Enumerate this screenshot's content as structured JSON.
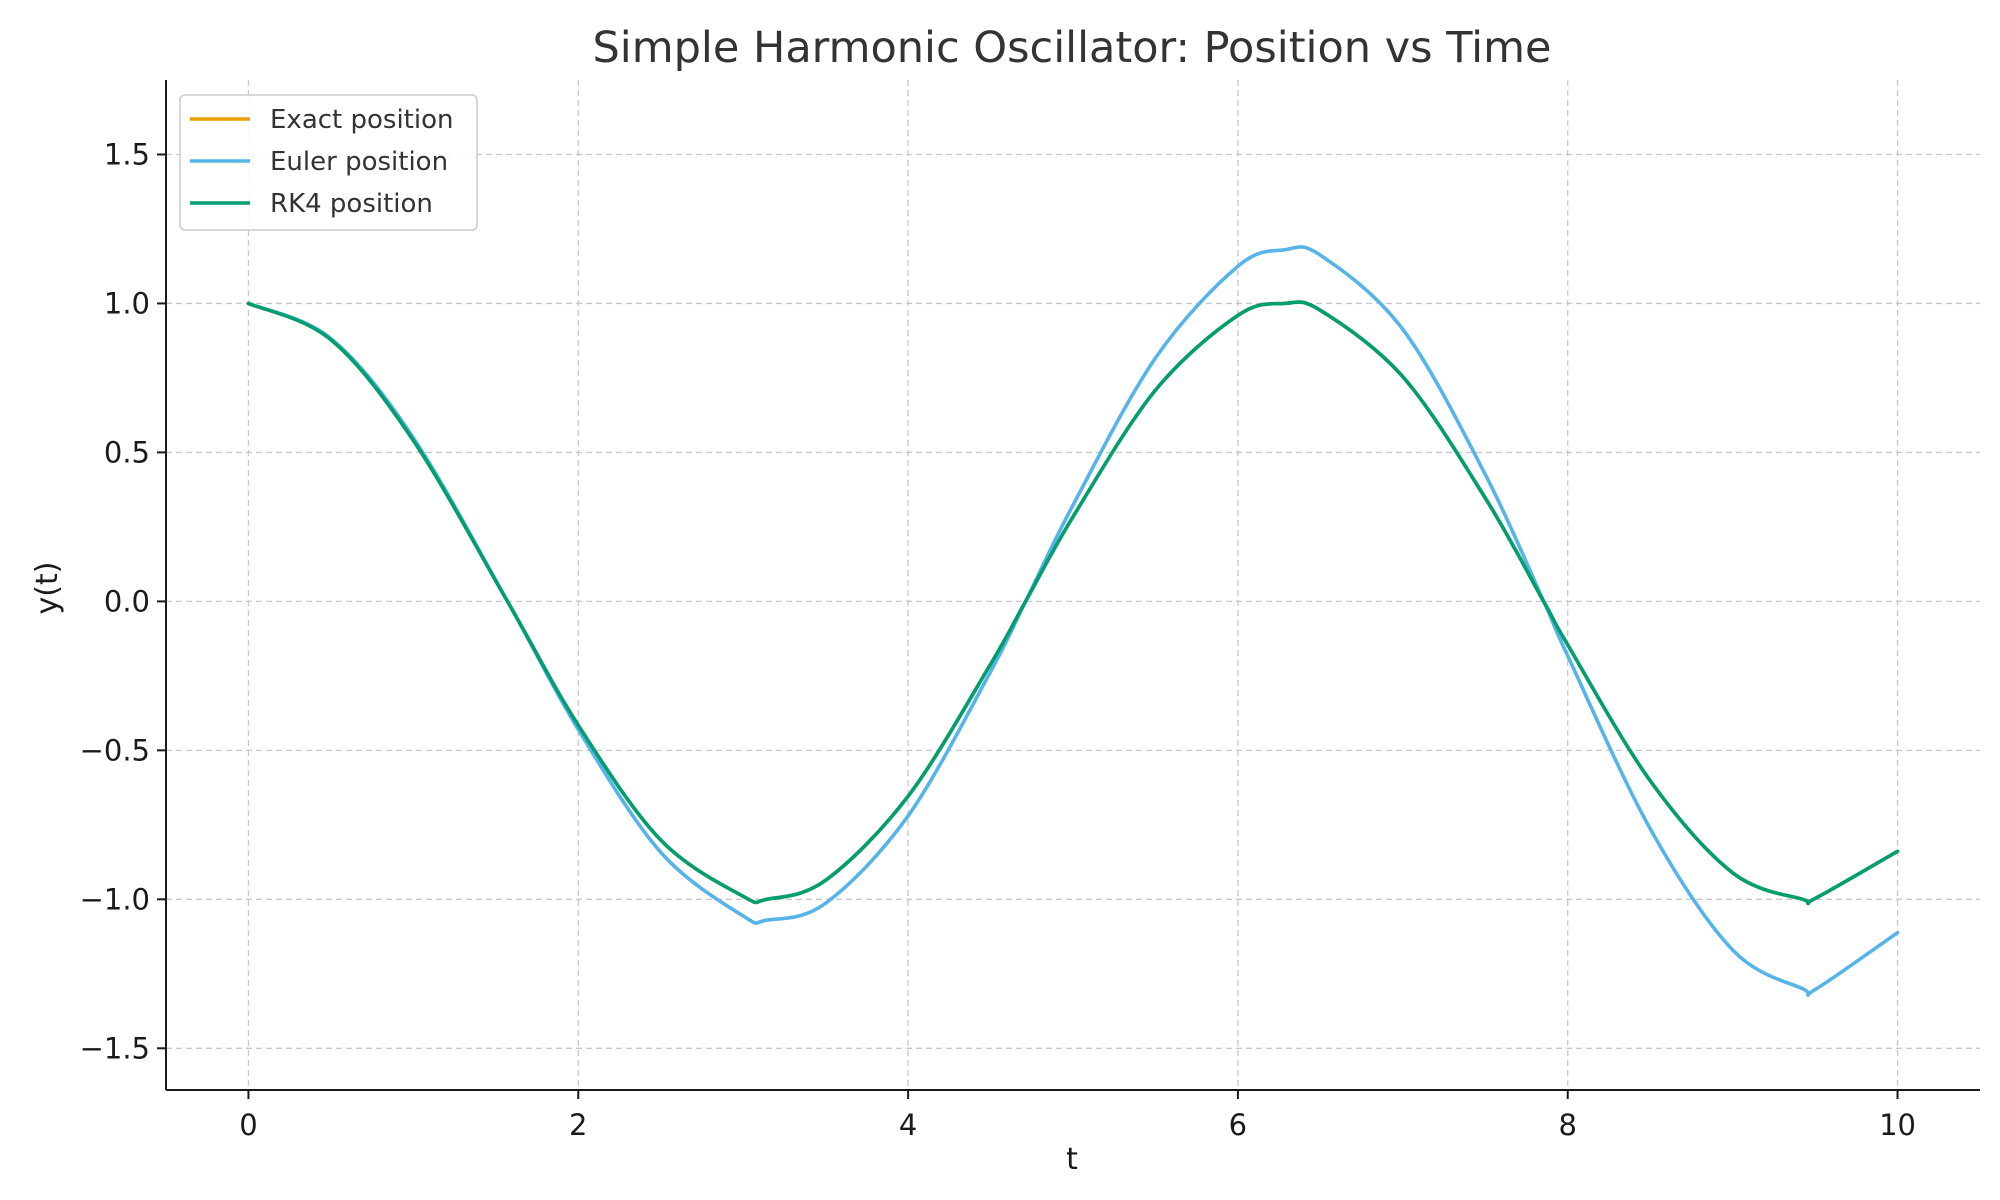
{
  "chart_data": {
    "type": "line",
    "title": "Simple Harmonic Oscillator: Position vs Time",
    "xlabel": "t",
    "ylabel": "y(t)",
    "xlim": [
      -0.5,
      10.5
    ],
    "ylim": [
      -1.64,
      1.75
    ],
    "xticks": [
      0,
      2,
      4,
      6,
      8,
      10
    ],
    "xtick_labels": [
      "0",
      "2",
      "4",
      "6",
      "8",
      "10"
    ],
    "yticks": [
      -1.5,
      -1.0,
      -0.5,
      0.0,
      0.5,
      1.0,
      1.5
    ],
    "ytick_labels": [
      "−1.5",
      "−1.0",
      "−0.5",
      "0.0",
      "0.5",
      "1.0",
      "1.5"
    ],
    "grid": true,
    "legend_position": "top-left",
    "x": [
      0,
      0.5,
      1,
      1.5708,
      2,
      2.5,
      3,
      3.1416,
      3.5,
      4,
      4.5,
      4.7124,
      5,
      5.5,
      6,
      6.2832,
      6.5,
      7,
      7.5,
      7.854,
      8,
      8.5,
      9,
      9.4248,
      9.5,
      10
    ],
    "series": [
      {
        "name": "Exact position",
        "color": "#E69F00",
        "values": [
          1.0,
          0.878,
          0.54,
          0.0,
          -0.416,
          -0.801,
          -0.99,
          -1.0,
          -0.936,
          -0.654,
          -0.211,
          0.0,
          0.284,
          0.709,
          0.96,
          1.0,
          0.977,
          0.754,
          0.347,
          0.0,
          -0.146,
          -0.602,
          -0.911,
          -1.0,
          -0.997,
          -0.839
        ]
      },
      {
        "name": "Euler position",
        "color": "#56B4E9",
        "values": [
          1.0,
          0.882,
          0.549,
          0.0,
          -0.43,
          -0.842,
          -1.056,
          -1.07,
          -1.013,
          -0.72,
          -0.236,
          0.0,
          0.323,
          0.817,
          1.125,
          1.18,
          1.162,
          0.913,
          0.426,
          0.0,
          -0.183,
          -0.763,
          -1.17,
          -1.3,
          -1.303,
          -1.112
        ]
      },
      {
        "name": "RK4 position",
        "color": "#009E73",
        "values": [
          1.0,
          0.878,
          0.54,
          0.0,
          -0.416,
          -0.801,
          -0.99,
          -1.0,
          -0.936,
          -0.654,
          -0.211,
          0.0,
          0.284,
          0.709,
          0.96,
          1.0,
          0.977,
          0.754,
          0.347,
          0.0,
          -0.146,
          -0.602,
          -0.911,
          -1.0,
          -0.997,
          -0.839
        ]
      }
    ]
  }
}
